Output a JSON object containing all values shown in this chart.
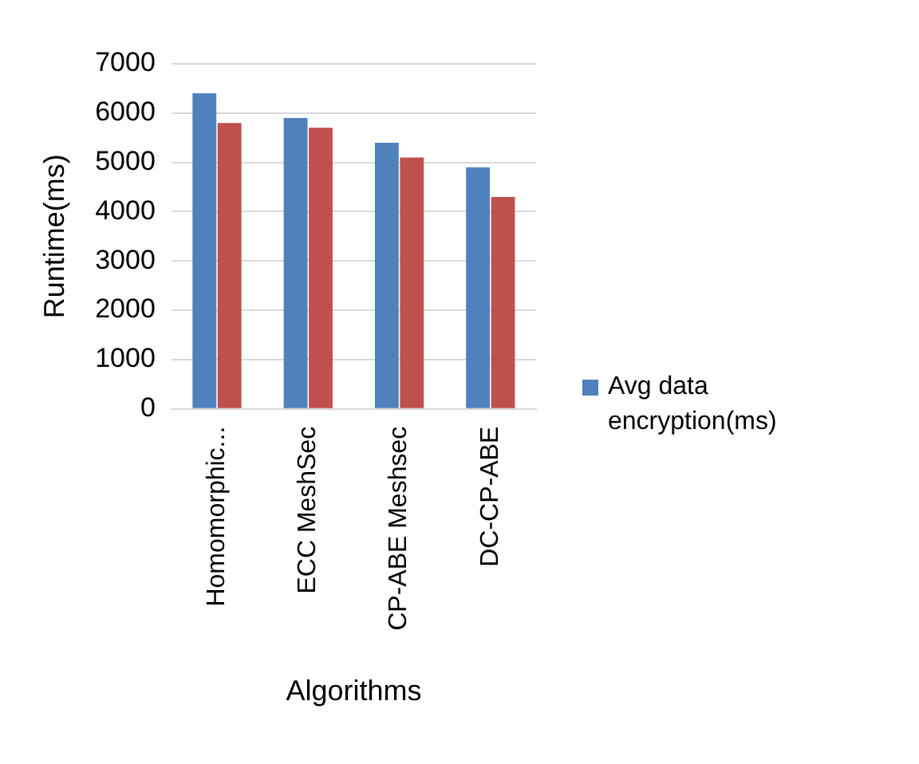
{
  "chart_data": {
    "type": "bar",
    "xlabel": "Algorithms",
    "ylabel": "Runtime(ms)",
    "categories": [
      "Homomorphic...",
      "ECC MeshSec",
      "CP-ABE Meshsec",
      "DC-CP-ABE"
    ],
    "series": [
      {
        "name": "Avg data encryption(ms)",
        "color": "#4f81bd",
        "values": [
          6400,
          5900,
          5400,
          4900
        ]
      },
      {
        "color": "#c0504d",
        "values": [
          5800,
          5700,
          5100,
          4300
        ]
      }
    ],
    "ylim": [
      0,
      7000
    ],
    "yticks": [
      0,
      1000,
      2000,
      3000,
      4000,
      5000,
      6000,
      7000
    ],
    "grid": "y",
    "legend": "right"
  }
}
